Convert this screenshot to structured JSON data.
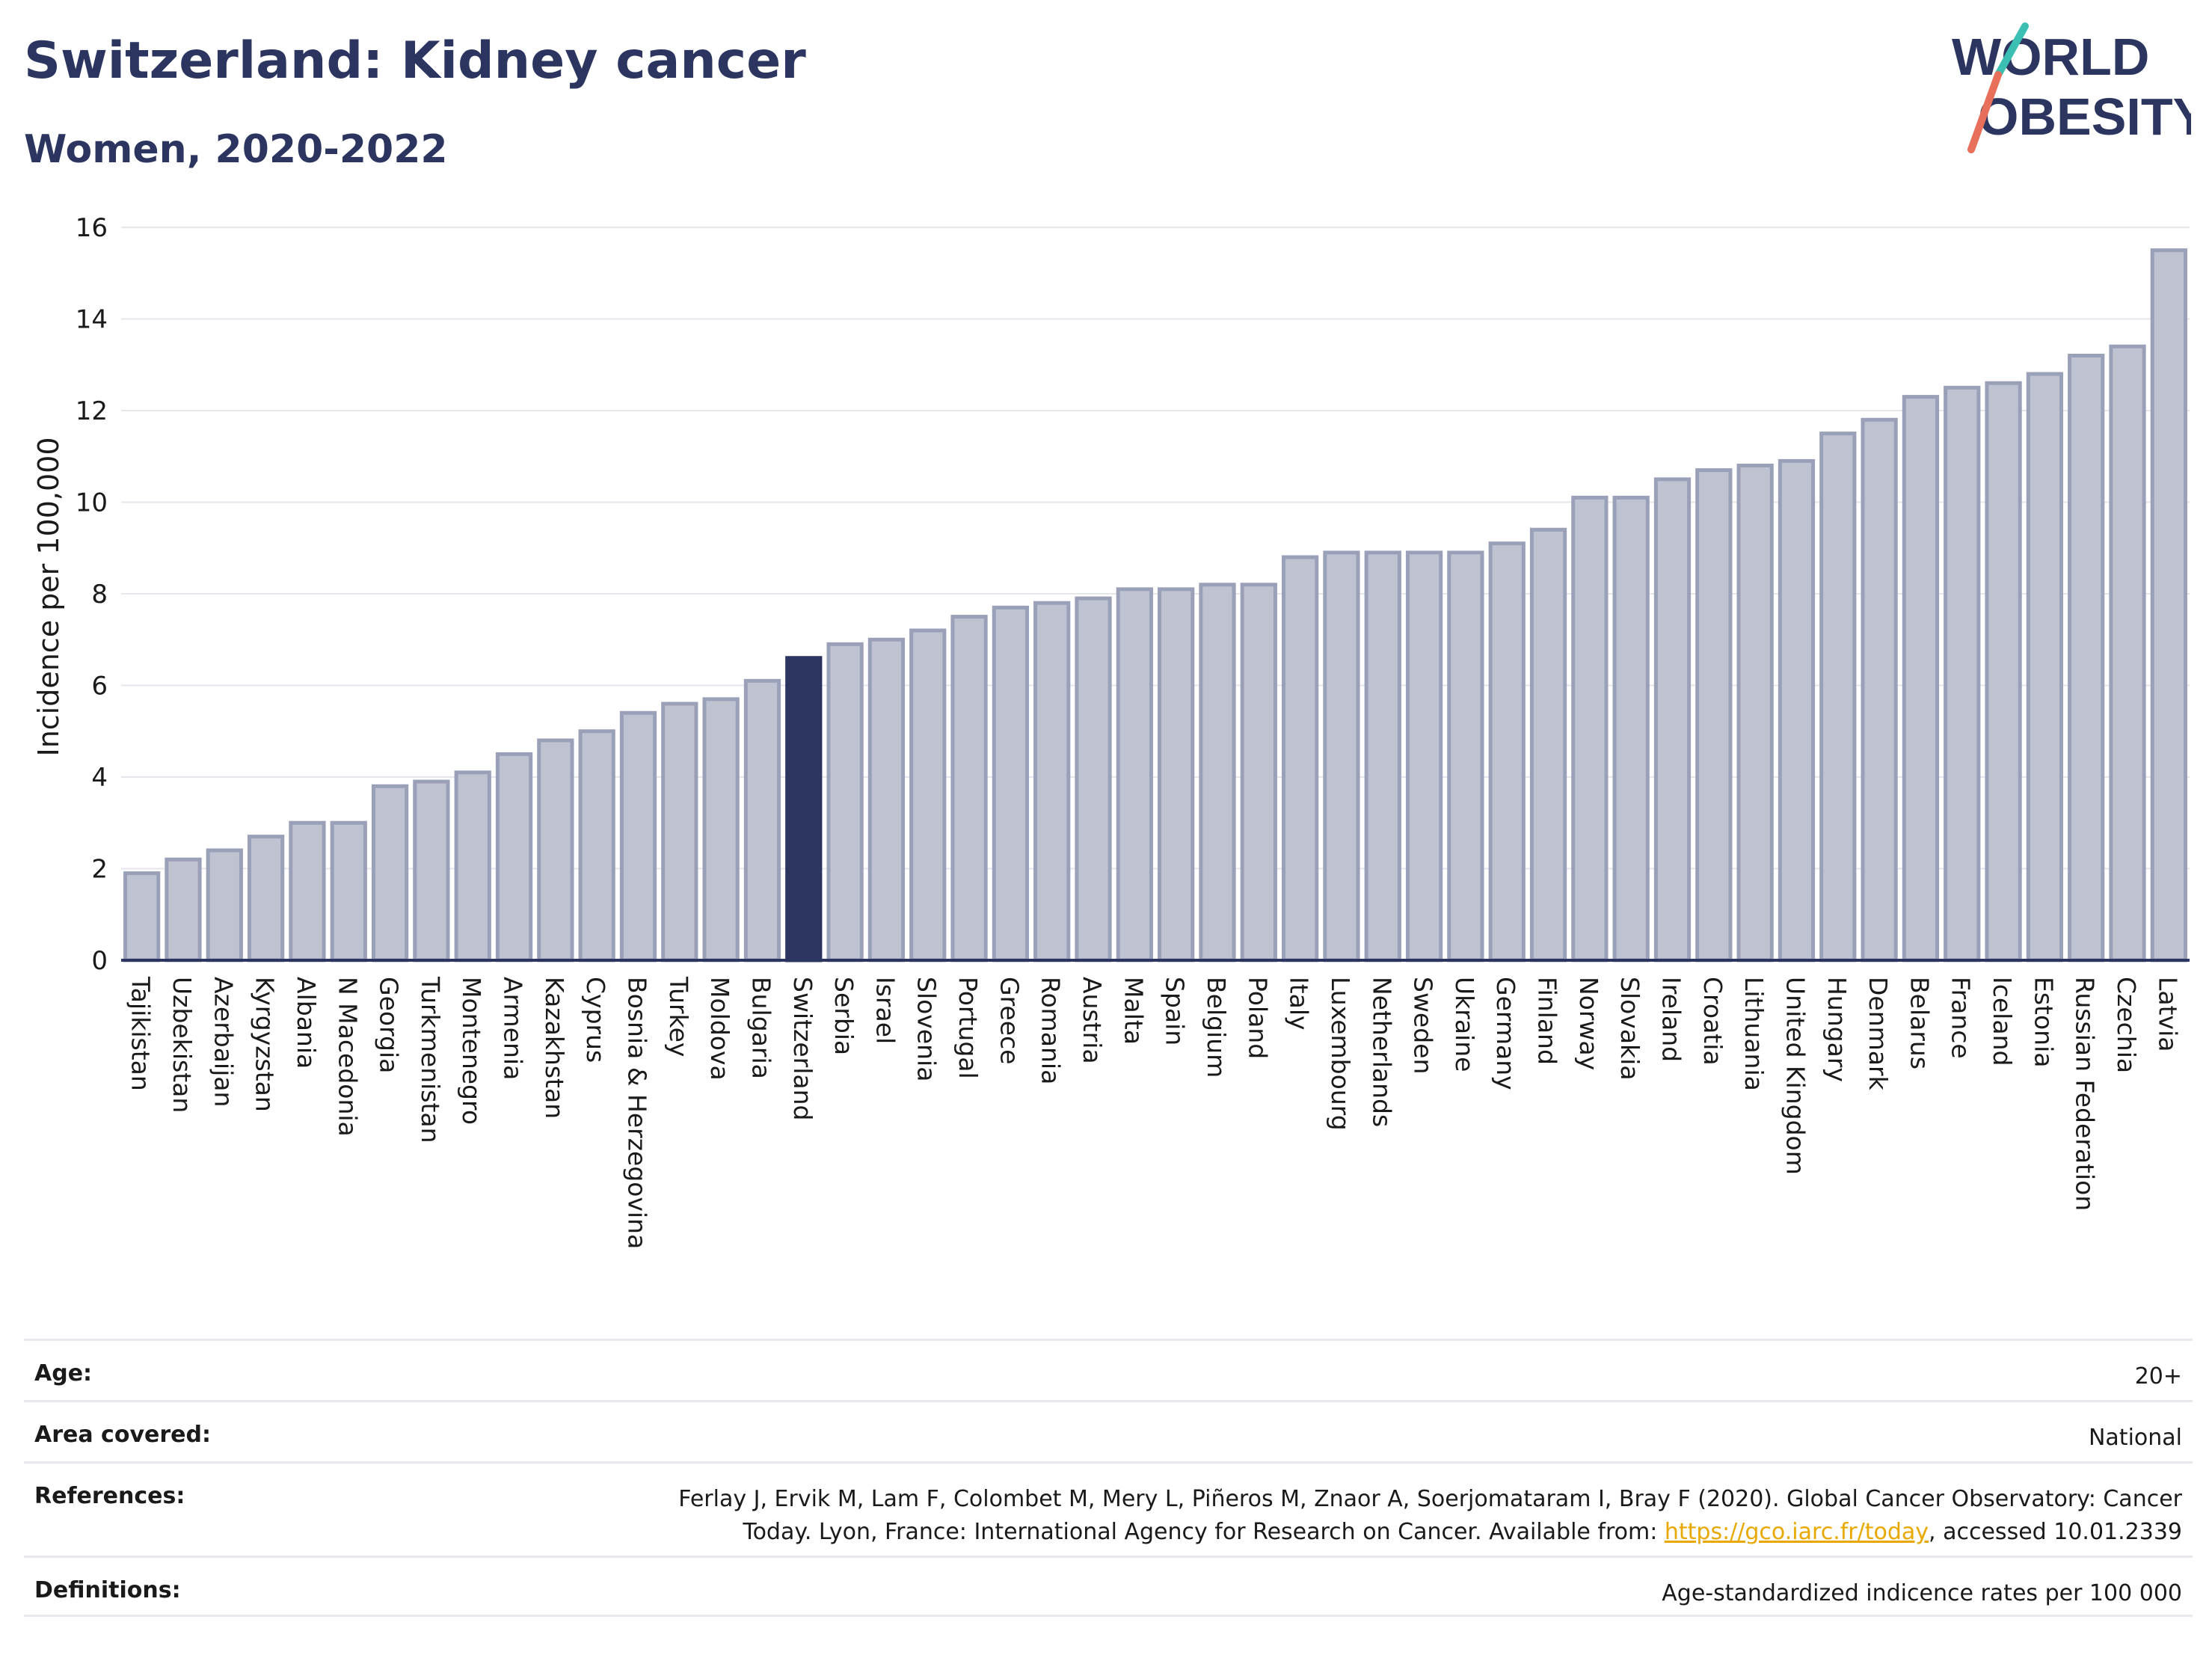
{
  "header": {
    "title": "Switzerland: Kidney cancer",
    "subtitle": "Women, 2020-2022"
  },
  "logo": {
    "line1": "WORLD",
    "line2": "OBESITY"
  },
  "colors": {
    "highlight": "#2c3560",
    "bar_fill": "#bfc3d1",
    "bar_stroke": "#9aa0b8",
    "title": "#2c3560",
    "logo_teal": "#3cbfb3",
    "logo_coral": "#e8705a"
  },
  "chart_data": {
    "type": "bar",
    "ylabel": "Incidence per 100,000",
    "ylim": [
      0,
      16
    ],
    "yticks": [
      0,
      2,
      4,
      6,
      8,
      10,
      12,
      14,
      16
    ],
    "grid": true,
    "highlight": "Switzerland",
    "categories": [
      "Tajikistan",
      "Uzbekistan",
      "Azerbaijan",
      "Kyrgyzstan",
      "Albania",
      "N Macedonia",
      "Georgia",
      "Turkmenistan",
      "Montenegro",
      "Armenia",
      "Kazakhstan",
      "Cyprus",
      "Bosnia & Herzegovina",
      "Turkey",
      "Moldova",
      "Bulgaria",
      "Switzerland",
      "Serbia",
      "Israel",
      "Slovenia",
      "Portugal",
      "Greece",
      "Romania",
      "Austria",
      "Malta",
      "Spain",
      "Belgium",
      "Poland",
      "Italy",
      "Luxembourg",
      "Netherlands",
      "Sweden",
      "Ukraine",
      "Germany",
      "Finland",
      "Norway",
      "Slovakia",
      "Ireland",
      "Croatia",
      "Lithuania",
      "United Kingdom",
      "Hungary",
      "Denmark",
      "Belarus",
      "France",
      "Iceland",
      "Estonia",
      "Russian Federation",
      "Czechia",
      "Latvia"
    ],
    "values": [
      1.9,
      2.2,
      2.4,
      2.7,
      3.0,
      3.0,
      3.8,
      3.9,
      4.1,
      4.5,
      4.8,
      5.0,
      5.4,
      5.6,
      5.7,
      6.1,
      6.6,
      6.9,
      7.0,
      7.2,
      7.5,
      7.7,
      7.8,
      7.9,
      8.1,
      8.1,
      8.2,
      8.2,
      8.8,
      8.9,
      8.9,
      8.9,
      8.9,
      9.1,
      9.4,
      10.1,
      10.1,
      10.5,
      10.7,
      10.8,
      10.9,
      11.5,
      11.8,
      12.3,
      12.5,
      12.6,
      12.8,
      13.2,
      13.4,
      15.5
    ]
  },
  "meta": {
    "age_label": "Age:",
    "age_value": "20+",
    "area_label": "Area covered:",
    "area_value": "National",
    "references_label": "References:",
    "references_line1": "Ferlay J, Ervik M, Lam F, Colombet M, Mery L, Piñeros M, Znaor A, Soerjomataram I, Bray F (2020). Global Cancer Observatory: Cancer",
    "references_line2_pre": "Today. Lyon, France: International Agency for Research on Cancer. Available from: ",
    "references_link": "https://gco.iarc.fr/today",
    "references_line2_post": ", accessed 10.01.2339",
    "definitions_label": "Definitions:",
    "definitions_value": "Age-standardized indicence rates per 100 000"
  }
}
